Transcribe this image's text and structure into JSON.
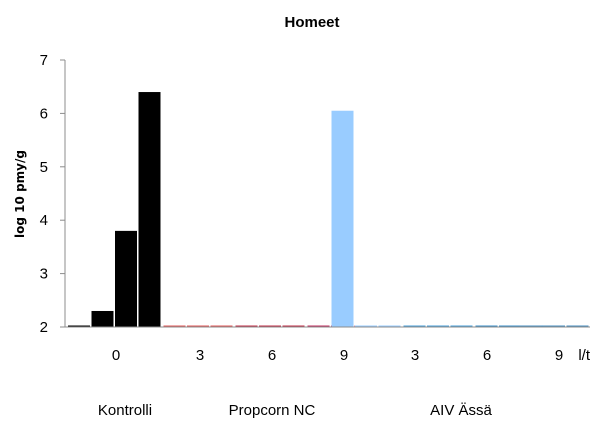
{
  "chart_data": {
    "type": "bar",
    "title": "Homeet",
    "ylabel": "log 10 pmy/g",
    "xlabel": "",
    "ylim": [
      2,
      7
    ],
    "y_ticks": [
      2,
      3,
      4,
      5,
      6,
      7
    ],
    "grid": false,
    "categories": [
      "0",
      "3",
      "6",
      "9",
      "3",
      "6",
      "9",
      "l/t"
    ],
    "groups": [
      {
        "label": "Kontrolli",
        "categories": [
          "0"
        ]
      },
      {
        "label": "Propcorn NC",
        "categories": [
          "3",
          "6",
          "9"
        ]
      },
      {
        "label": "AIV Ässä",
        "categories": [
          "3",
          "6",
          "9",
          "l/t"
        ]
      }
    ],
    "bars": [
      {
        "category": "0",
        "group": "Kontrolli",
        "values": [
          2.0,
          2.3,
          3.8,
          6.4
        ],
        "color": "#000000"
      },
      {
        "category": "3",
        "group": "Propcorn NC",
        "values": [
          2.0,
          2.0,
          2.0
        ],
        "color": "#e05a5a"
      },
      {
        "category": "6",
        "group": "Propcorn NC",
        "values": [
          2.0,
          2.0,
          2.0
        ],
        "color": "#c0304a"
      },
      {
        "category": "9",
        "group": "Propcorn NC",
        "values": [
          2.0,
          2.0,
          2.0
        ],
        "color": "#c03060"
      },
      {
        "category": "3",
        "group": "AIV Ässä",
        "values": [
          6.05,
          2.0,
          2.0
        ],
        "color": "#99ccff"
      },
      {
        "category": "6",
        "group": "AIV Ässä",
        "values": [
          2.0,
          2.0,
          2.0
        ],
        "color": "#4a9fd8"
      },
      {
        "category": "9",
        "group": "AIV Ässä",
        "values": [
          2.0,
          2.0,
          2.0
        ],
        "color": "#3b8fc8"
      },
      {
        "category": "l/t",
        "group": "AIV Ässä",
        "values": [
          2.0,
          2.0,
          2.0
        ],
        "color": "#4a8fc0"
      }
    ]
  }
}
